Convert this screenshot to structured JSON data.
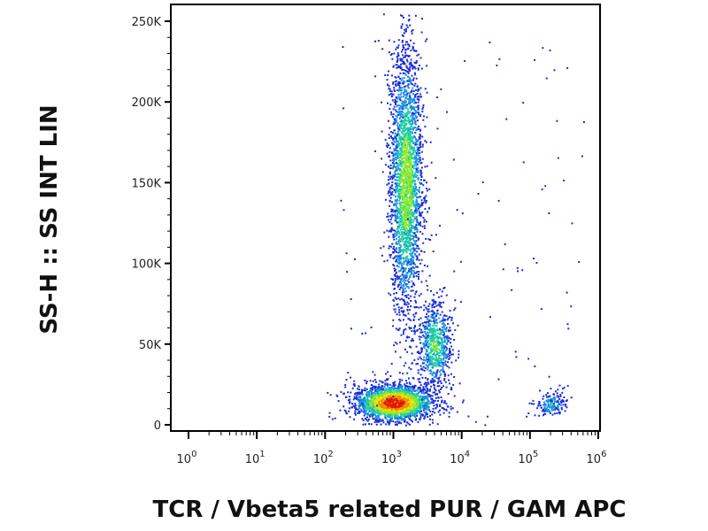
{
  "chart_data": {
    "type": "scatter",
    "title": "",
    "xlabel": "TCR / Vbeta5 related PUR / GAM APC",
    "ylabel": "SS-H :: SS INT LIN",
    "x_scale": "log",
    "xlim": [
      1,
      1000000
    ],
    "ylim": [
      0,
      262144
    ],
    "x_ticks": [
      {
        "base": "10",
        "exp": "0",
        "value": 1
      },
      {
        "base": "10",
        "exp": "1",
        "value": 10
      },
      {
        "base": "10",
        "exp": "2",
        "value": 100
      },
      {
        "base": "10",
        "exp": "3",
        "value": 1000
      },
      {
        "base": "10",
        "exp": "4",
        "value": 10000
      },
      {
        "base": "10",
        "exp": "5",
        "value": 100000
      },
      {
        "base": "10",
        "exp": "6",
        "value": 1000000
      }
    ],
    "y_ticks": [
      {
        "label": "0",
        "value": 0
      },
      {
        "label": "50K",
        "value": 50000
      },
      {
        "label": "100K",
        "value": 100000
      },
      {
        "label": "150K",
        "value": 150000
      },
      {
        "label": "200K",
        "value": 200000
      },
      {
        "label": "250K",
        "value": 250000
      }
    ],
    "density_colors": [
      "#1a2bd6",
      "#1d8fe0",
      "#22d3a0",
      "#8ee82a",
      "#f1e000",
      "#f08a00",
      "#e3170a"
    ],
    "populations": [
      {
        "center_x": 1000,
        "center_y": 14000,
        "spread_log_x": 0.28,
        "spread_y": 5500,
        "points": 2400,
        "peak_density": 1.0
      },
      {
        "center_x": 1500,
        "center_y": 150000,
        "spread_log_x": 0.12,
        "spread_y": 42000,
        "points": 2600,
        "peak_density": 0.55
      },
      {
        "center_x": 4000,
        "center_y": 50000,
        "spread_log_x": 0.12,
        "spread_y": 14000,
        "points": 700,
        "peak_density": 0.45
      },
      {
        "center_x": 200000,
        "center_y": 13000,
        "spread_log_x": 0.12,
        "spread_y": 4000,
        "points": 160,
        "peak_density": 0.3
      }
    ]
  }
}
